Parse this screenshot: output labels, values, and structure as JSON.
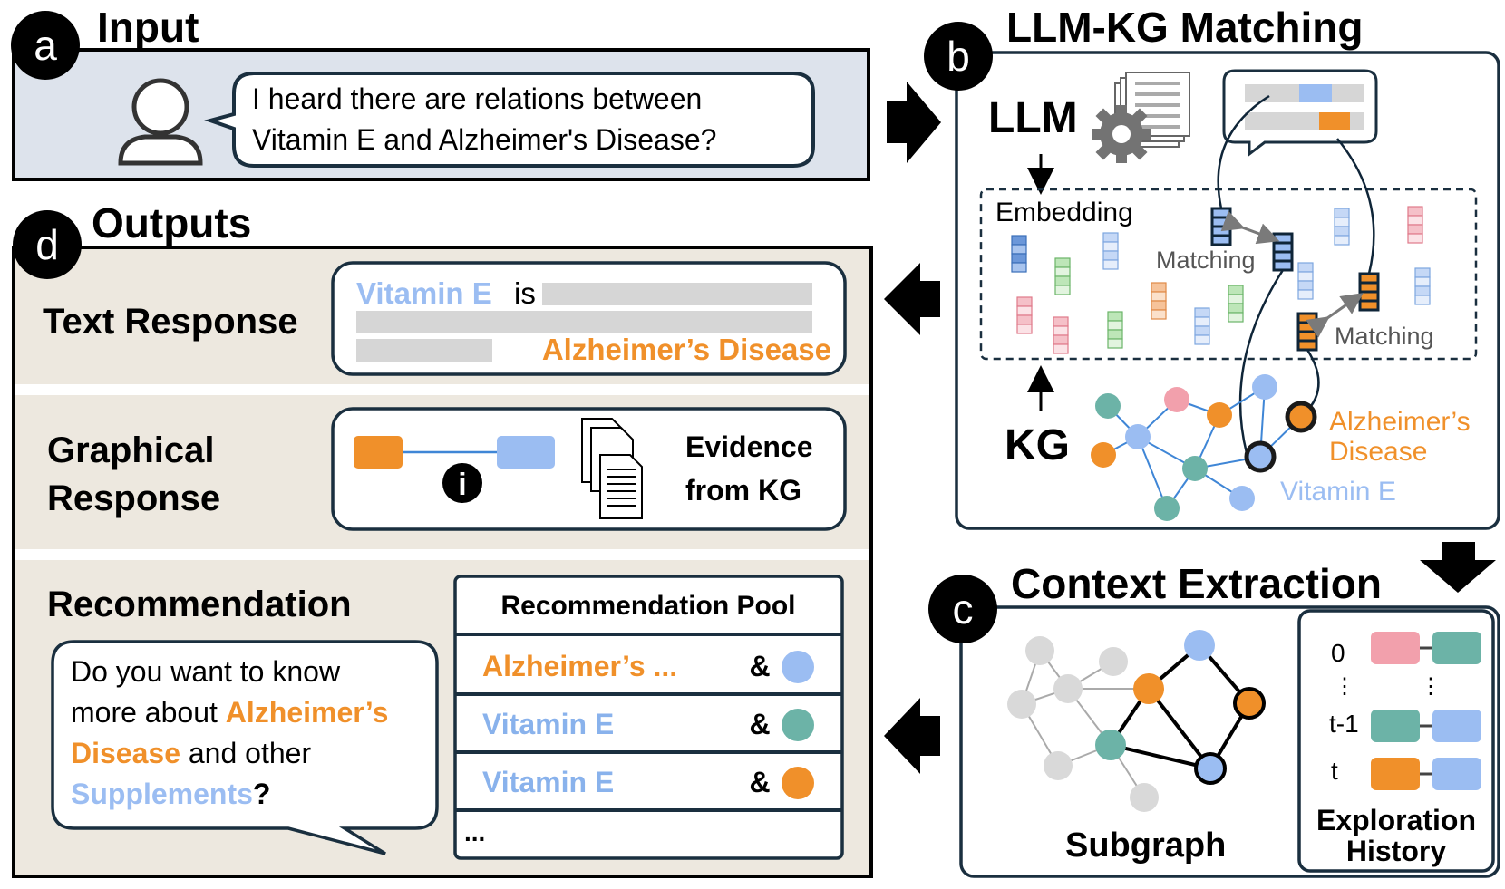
{
  "colors": {
    "panel_input": "#dde3ec",
    "panel_outputs": "#ede8df",
    "navy": "#1a2f3f",
    "orange": "#f0902a",
    "blue": "#9bbdf2",
    "blue_text": "#89b2ec",
    "teal": "#6cb3a7",
    "pink": "#f2a0ac",
    "green": "#a7dca0",
    "gray": "#d6d6d6",
    "node_gray": "#d9d9d9"
  },
  "panel_a": {
    "letter": "a",
    "title": "Input",
    "user_icon": "user-icon",
    "query_line1": "I heard there are relations between",
    "query_line2": "Vitamin E and Alzheimer's Disease?"
  },
  "panel_b": {
    "letter": "b",
    "title": "LLM-KG Matching",
    "llm_label": "LLM",
    "kg_label": "KG",
    "embedding_label": "Embedding",
    "matching_label_1": "Matching",
    "matching_label_2": "Matching",
    "entity_alz_line1": "Alzheimer’s",
    "entity_alz_line2": "Disease",
    "entity_vit": "Vitamin E",
    "icons": [
      "gear-icon",
      "document-stack-icon",
      "speech-bubble-icon"
    ]
  },
  "panel_c": {
    "letter": "c",
    "title": "Context Extraction",
    "subgraph_label": "Subgraph",
    "history_label_line1": "Exploration",
    "history_label_line2": "History",
    "history_steps": [
      "0",
      "⋮",
      "t-1",
      "t"
    ],
    "history_colons": "⋮"
  },
  "panel_d": {
    "letter": "d",
    "title": "Outputs",
    "text_response": {
      "label": "Text Response",
      "vitamin": "Vitamin E",
      "is": "is",
      "disease": "Alzheimer’s Disease"
    },
    "graphical_response": {
      "label_line1": "Graphical",
      "label_line2": "Response",
      "info_glyph": "i",
      "evidence_line1": "Evidence",
      "evidence_line2": "from KG",
      "icons": [
        "info-icon",
        "document-stack-icon"
      ]
    },
    "recommendation": {
      "label": "Recommendation",
      "bubble_line1": "Do you want to know",
      "bubble_line2_a": "more about ",
      "bubble_line2_b": "Alzheimer’s",
      "bubble_line3_a": "Disease",
      "bubble_line3_b": " and other",
      "bubble_line4_a": "Supplements",
      "bubble_line4_b": "?",
      "pool_title": "Recommendation Pool",
      "pool_rows": [
        {
          "entity": "Alzheimer’s ...",
          "amp": "&",
          "dot_color": "#9bbdf2",
          "text_color": "#f0902a"
        },
        {
          "entity": "Vitamin E",
          "amp": "&",
          "dot_color": "#6cb3a7",
          "text_color": "#89b2ec"
        },
        {
          "entity": "Vitamin E",
          "amp": "&",
          "dot_color": "#f0902a",
          "text_color": "#89b2ec"
        }
      ],
      "pool_more": "..."
    }
  }
}
